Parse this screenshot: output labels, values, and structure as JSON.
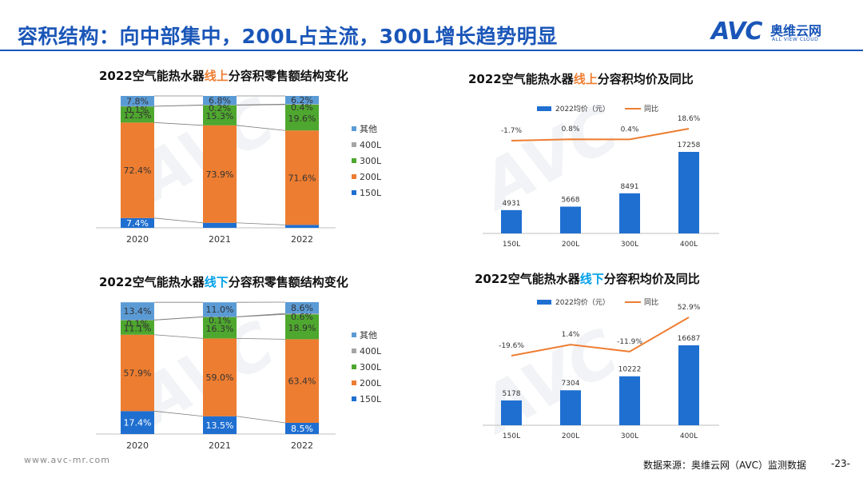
{
  "header": {
    "title": "容积结构：向中部集中，200L占主流，300L增长趋势明显",
    "logo_text": "AVC",
    "logo_cn": "奥维云网",
    "logo_en": "ALL VIEW CLOUD"
  },
  "chart_titles": [
    {
      "prefix": "2022空气能热水器",
      "highlight": "线上",
      "suffix": "分容积零售额结构变化"
    },
    {
      "prefix": "2022空气能热水器",
      "highlight": "线上",
      "suffix": "分容积均价及同比"
    },
    {
      "prefix": "2022空气能热水器",
      "highlight": "线下",
      "suffix": "分容积零售额结构变化"
    },
    {
      "prefix": "2022空气能热水器",
      "highlight": "线下",
      "suffix": "分容积均价及同比"
    }
  ],
  "chart_data": [
    {
      "type": "bar",
      "stacked": true,
      "percent": true,
      "title": "2022空气能热水器线上分容积零售额结构变化",
      "categories": [
        "2020",
        "2021",
        "2022"
      ],
      "series": [
        {
          "name": "150L",
          "values": [
            7.4,
            3.8,
            2.2
          ],
          "labels": [
            "7.4%",
            "",
            ""
          ]
        },
        {
          "name": "200L",
          "values": [
            72.4,
            73.9,
            71.6
          ],
          "labels": [
            "72.4%",
            "73.9%",
            "71.6%"
          ]
        },
        {
          "name": "300L",
          "values": [
            12.3,
            15.3,
            19.6
          ],
          "labels": [
            "12.3%",
            "15.3%",
            "19.6%"
          ]
        },
        {
          "name": "400L",
          "values": [
            0.1,
            0.2,
            0.4
          ],
          "labels": [
            "0.1%",
            "0.2%",
            "0.4%"
          ]
        },
        {
          "name": "其他",
          "values": [
            7.8,
            6.8,
            6.2
          ],
          "labels": [
            "7.8%",
            "6.8%",
            "6.2%"
          ]
        }
      ],
      "colors": {
        "150L": "#1f6fd1",
        "200L": "#ed7d31",
        "300L": "#4ea72e",
        "400L": "#a5a5a5",
        "其他": "#5b9bd5"
      },
      "legend": [
        "其他",
        "400L",
        "300L",
        "200L",
        "150L"
      ]
    },
    {
      "type": "bar+line",
      "title": "2022空气能热水器线上分容积均价及同比",
      "categories": [
        "150L",
        "200L",
        "300L",
        "400L"
      ],
      "bar_series": {
        "name": "2022均价（元）",
        "values": [
          4931,
          5668,
          8491,
          17258
        ]
      },
      "line_series": {
        "name": "同比",
        "values": [
          -1.7,
          0.8,
          0.4,
          18.6
        ],
        "labels": [
          "-1.7%",
          "0.8%",
          "0.4%",
          "18.6%"
        ]
      },
      "colors": {
        "bar": "#1f6fd1",
        "line": "#ed7d31"
      }
    },
    {
      "type": "bar",
      "stacked": true,
      "percent": true,
      "title": "2022空气能热水器线下分容积零售额结构变化",
      "categories": [
        "2020",
        "2021",
        "2022"
      ],
      "series": [
        {
          "name": "150L",
          "values": [
            17.4,
            13.5,
            8.5
          ],
          "labels": [
            "17.4%",
            "13.5%",
            "8.5%"
          ]
        },
        {
          "name": "200L",
          "values": [
            57.9,
            59.0,
            63.4
          ],
          "labels": [
            "57.9%",
            "59.0%",
            "63.4%"
          ]
        },
        {
          "name": "300L",
          "values": [
            11.1,
            16.3,
            18.9
          ],
          "labels": [
            "11.1%",
            "16.3%",
            "18.9%"
          ]
        },
        {
          "name": "400L",
          "values": [
            0.1,
            0.1,
            0.6
          ],
          "labels": [
            "0.1%",
            "0.1%",
            "0.6%"
          ]
        },
        {
          "name": "其他",
          "values": [
            13.4,
            11.0,
            8.6
          ],
          "labels": [
            "13.4%",
            "11.0%",
            "8.6%"
          ]
        }
      ],
      "colors": {
        "150L": "#1f6fd1",
        "200L": "#ed7d31",
        "300L": "#4ea72e",
        "400L": "#a5a5a5",
        "其他": "#5b9bd5"
      },
      "legend": [
        "其他",
        "400L",
        "300L",
        "200L",
        "150L"
      ]
    },
    {
      "type": "bar+line",
      "title": "2022空气能热水器线下分容积均价及同比",
      "categories": [
        "150L",
        "200L",
        "300L",
        "400L"
      ],
      "bar_series": {
        "name": "2022均价（元）",
        "values": [
          5178,
          7304,
          10222,
          16687
        ]
      },
      "line_series": {
        "name": "同比",
        "values": [
          -19.6,
          1.4,
          -11.9,
          52.9
        ],
        "labels": [
          "-19.6%",
          "1.4%",
          "-11.9%",
          "52.9%"
        ]
      },
      "colors": {
        "bar": "#1f6fd1",
        "line": "#ed7d31"
      }
    }
  ],
  "footer": {
    "url": "www.avc-mr.com",
    "source": "数据来源：奥维云网（AVC）监测数据",
    "page": "-23-"
  }
}
